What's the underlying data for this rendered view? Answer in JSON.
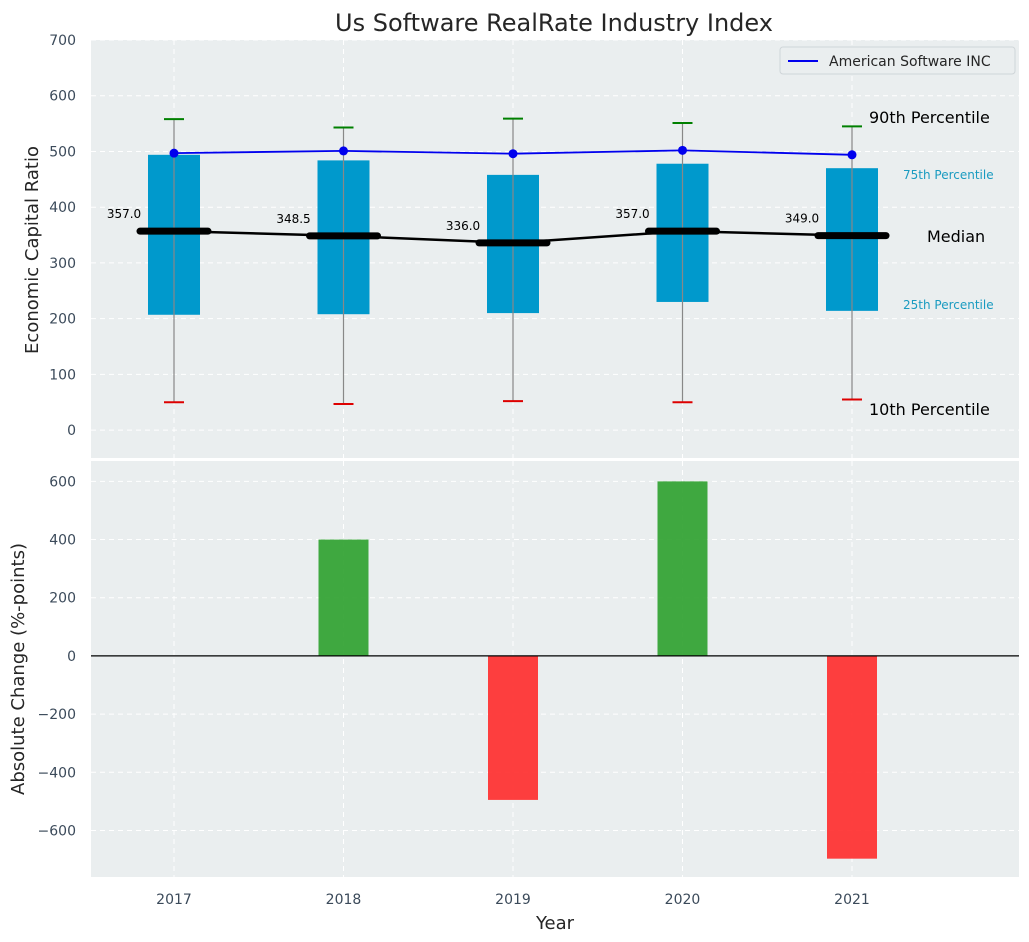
{
  "chart_data": [
    {
      "type": "box",
      "title": "Us Software RealRate Industry Index",
      "ylabel": "Economic Capital Ratio",
      "ylim": [
        -50,
        700
      ],
      "yticks": [
        0,
        100,
        200,
        300,
        400,
        500,
        600,
        700
      ],
      "categories": [
        "2017",
        "2018",
        "2019",
        "2020",
        "2021"
      ],
      "p10": [
        50,
        47,
        52,
        50,
        55
      ],
      "p25": [
        207,
        208,
        210,
        230,
        214
      ],
      "median": [
        357.0,
        348.5,
        336.0,
        357.0,
        349.0
      ],
      "median_labels": [
        "357.0",
        "348.5",
        "336.0",
        "357.0",
        "349.0"
      ],
      "p75": [
        494,
        484,
        458,
        478,
        470
      ],
      "p90": [
        558,
        543,
        559,
        551,
        545
      ],
      "company": {
        "name": "American Software INC",
        "values": [
          497,
          501,
          496,
          502,
          494
        ]
      },
      "annotations": {
        "p90": "90th Percentile",
        "p75": "75th Percentile",
        "median": "Median",
        "p25": "25th Percentile",
        "p10": "10th Percentile"
      },
      "colors": {
        "box": "#0099cc",
        "company": "#0000ee",
        "median": "#000000",
        "p90": "#008000",
        "p10": "#dd0000",
        "whisker": "#888888"
      },
      "legend": "top-right"
    },
    {
      "type": "bar",
      "ylabel": "Absolute Change (%-points)",
      "xlabel": "Year",
      "ylim": [
        -760,
        670
      ],
      "yticks": [
        -600,
        -400,
        -200,
        0,
        200,
        400,
        600
      ],
      "ytick_labels": [
        "−600",
        "−400",
        "−200",
        "0",
        "200",
        "400",
        "600"
      ],
      "categories": [
        "2017",
        "2018",
        "2019",
        "2020",
        "2021"
      ],
      "values": [
        0,
        400,
        -495,
        600,
        -697
      ],
      "colors": {
        "positive": "#2ca02c",
        "negative": "#ff2a2a"
      }
    }
  ]
}
